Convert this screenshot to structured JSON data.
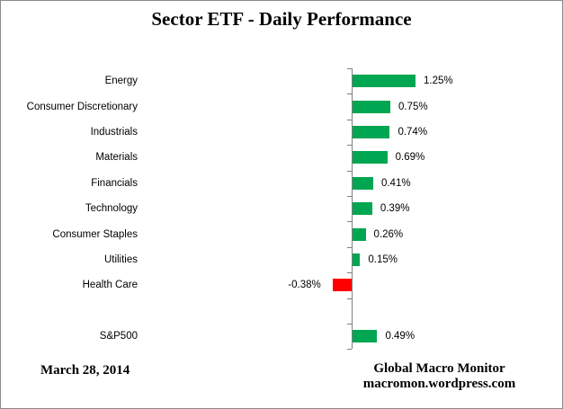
{
  "title": "Sector ETF - Daily Performance",
  "footer": {
    "date": "March 28, 2014",
    "credit_line1": "Global Macro Monitor",
    "credit_line2": "macromon.wordpress.com"
  },
  "chart_data": {
    "type": "bar",
    "orientation": "horizontal",
    "title": "Sector ETF - Daily Performance",
    "xlabel": "",
    "ylabel": "",
    "unit": "percent",
    "xlim": [
      -0.6,
      1.5
    ],
    "grid": false,
    "legend": "none",
    "categories": [
      "Energy",
      "Consumer Discretionary",
      "Industrials",
      "Materials",
      "Financials",
      "Technology",
      "Consumer Staples",
      "Utilities",
      "Health Care",
      "",
      "S&P500"
    ],
    "values": [
      1.25,
      0.75,
      0.74,
      0.69,
      0.41,
      0.39,
      0.26,
      0.15,
      -0.38,
      null,
      0.49
    ],
    "value_labels": [
      "1.25%",
      "0.75%",
      "0.74%",
      "0.69%",
      "0.41%",
      "0.39%",
      "0.26%",
      "0.15%",
      "-0.38%",
      "",
      "0.49%"
    ],
    "colors": {
      "positive_bar": "#00A651",
      "negative_bar": "#FF0000",
      "axis": "#808080",
      "text": "#000000",
      "background": "#FFFFFF",
      "border": "#8A8A8A"
    }
  }
}
